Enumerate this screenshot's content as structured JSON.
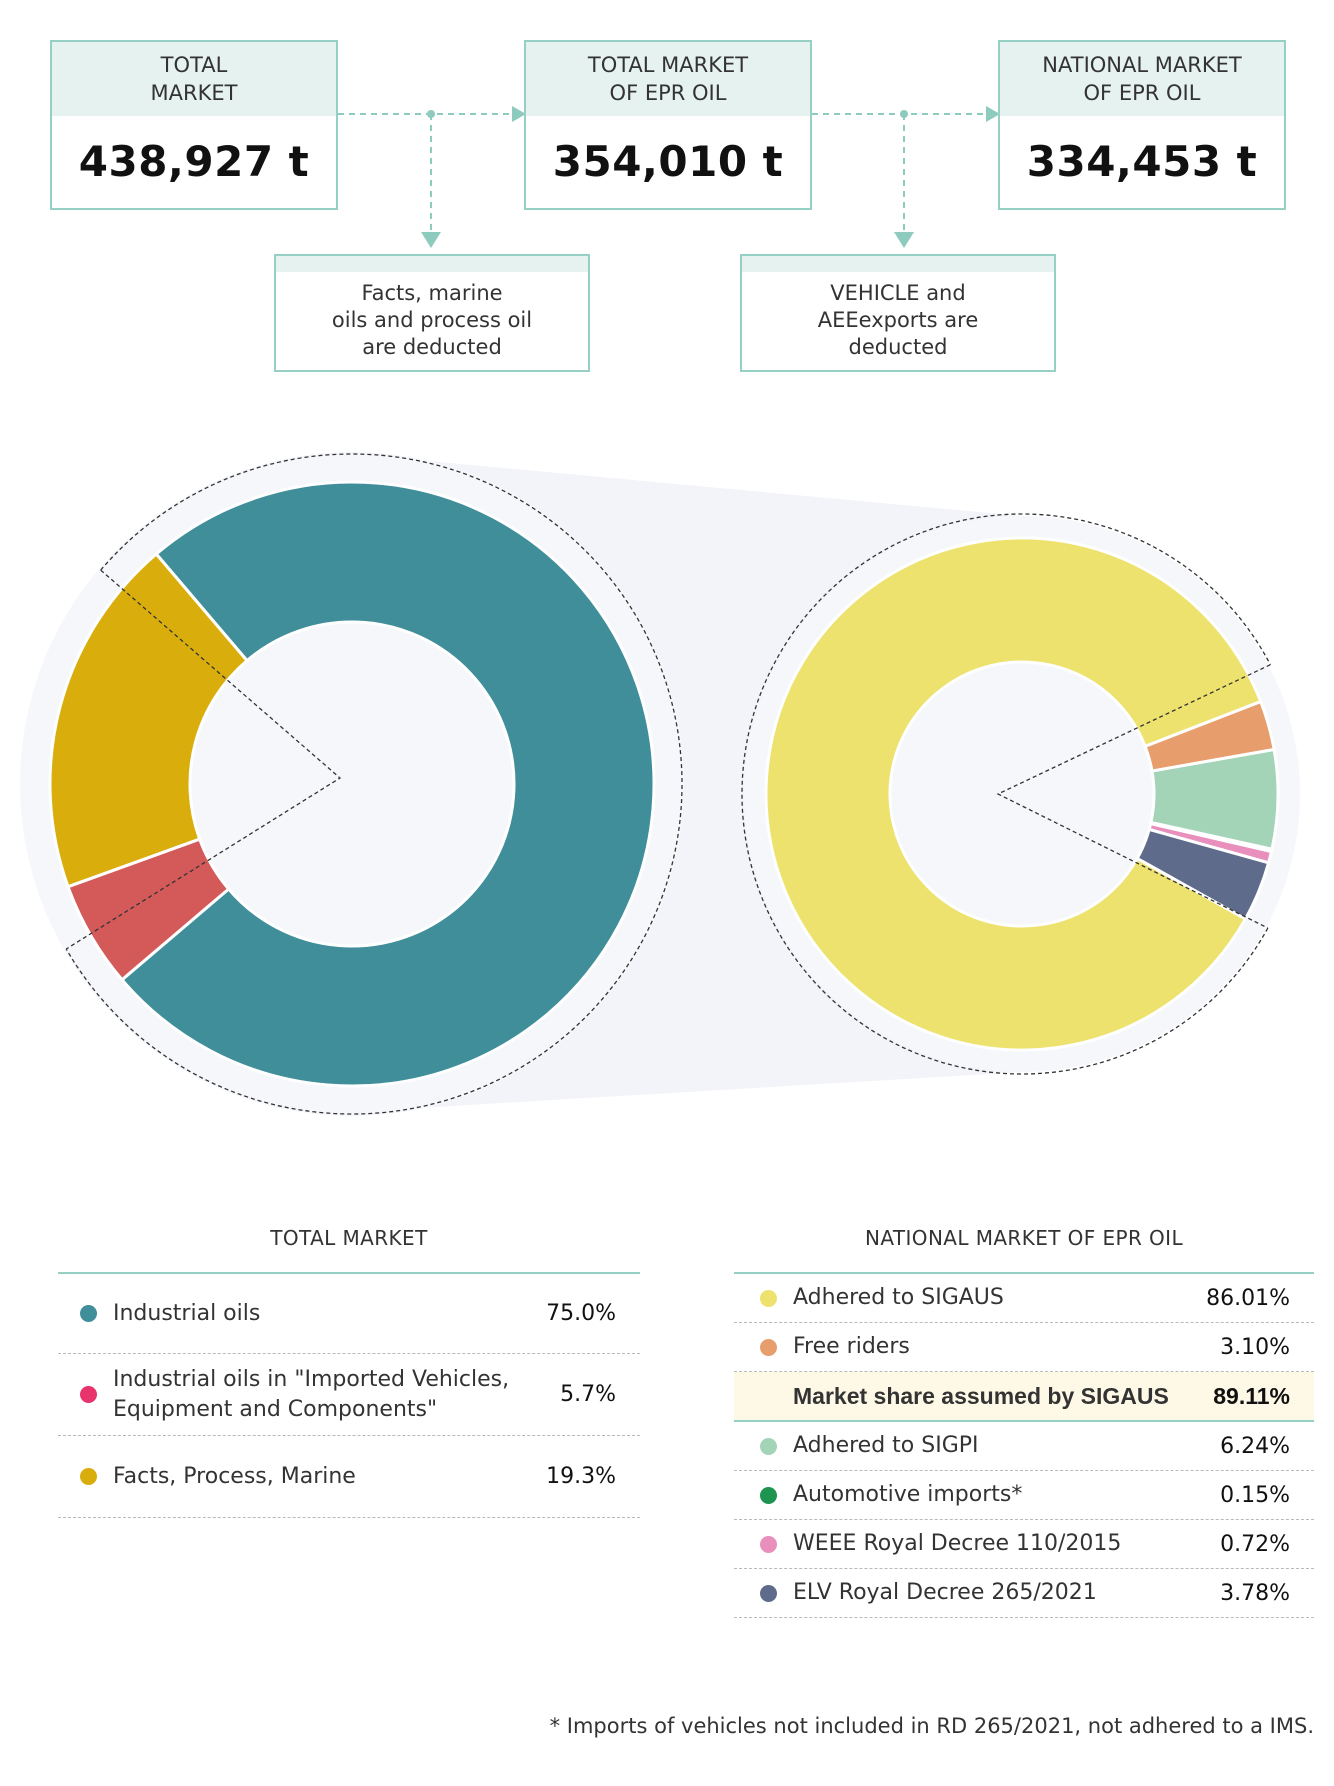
{
  "flow": {
    "boxes": [
      {
        "id": "total-market",
        "title_lines": [
          "TOTAL",
          "MARKET"
        ],
        "value": "438,927 t"
      },
      {
        "id": "total-market-epr",
        "title_lines": [
          "TOTAL MARKET",
          "OF EPR OIL"
        ],
        "value": "354,010 t"
      },
      {
        "id": "national-market-epr",
        "title_lines": [
          "NATIONAL MARKET",
          "OF EPR OIL"
        ],
        "value": "334,453 t"
      }
    ],
    "notes": [
      {
        "id": "deduction-1",
        "lines": [
          "Facts, marine",
          "oils and process oil",
          "are deducted"
        ]
      },
      {
        "id": "deduction-2",
        "lines": [
          "VEHICLE and",
          "AEEexports are",
          "deducted"
        ]
      }
    ],
    "colors": {
      "box_border": "#96cfc3",
      "box_header": "#e6f2f0",
      "arrow": "#8ccbbd"
    }
  },
  "chart_data": [
    {
      "type": "pie",
      "variant": "donut",
      "title": "TOTAL MARKET",
      "slices": [
        {
          "label": "Industrial oils",
          "value": 75.0,
          "display": "75.0%",
          "color": "#418e9b"
        },
        {
          "label": "Industrial oils in \"Imported Vehicles, Equipment and Components\"",
          "value": 5.7,
          "display": "5.7%",
          "color": "#d45a5a",
          "legend_color": "#e8336d"
        },
        {
          "label": "Facts, Process, Marine",
          "value": 19.3,
          "display": "19.3%",
          "color": "#d9ad0c"
        }
      ]
    },
    {
      "type": "pie",
      "variant": "donut",
      "title": "NATIONAL MARKET OF EPR OIL",
      "slices": [
        {
          "label": "Adhered to SIGAUS",
          "value": 86.01,
          "display": "86.01%",
          "color": "#ede26e"
        },
        {
          "label": "Free riders",
          "value": 3.1,
          "display": "3.10%",
          "color": "#e89e6c"
        },
        {
          "label": "Adhered to SIGPI",
          "value": 6.24,
          "display": "6.24%",
          "color": "#a3d4b8"
        },
        {
          "label": "Automotive imports*",
          "value": 0.15,
          "display": "0.15%",
          "color": "#1d9450"
        },
        {
          "label": "WEEE Royal Decree 110/2015",
          "value": 0.72,
          "display": "0.72%",
          "color": "#e88fbd"
        },
        {
          "label": "ELV Royal Decree 265/2021",
          "value": 3.78,
          "display": "3.78%",
          "color": "#5f6b8b"
        }
      ],
      "highlight_row": {
        "label": "Market share assumed by SIGAUS",
        "display": "89.11%",
        "after_index": 1
      }
    }
  ],
  "footnote": "* Imports of vehicles not included in RD 265/2021, not adhered to a IMS."
}
